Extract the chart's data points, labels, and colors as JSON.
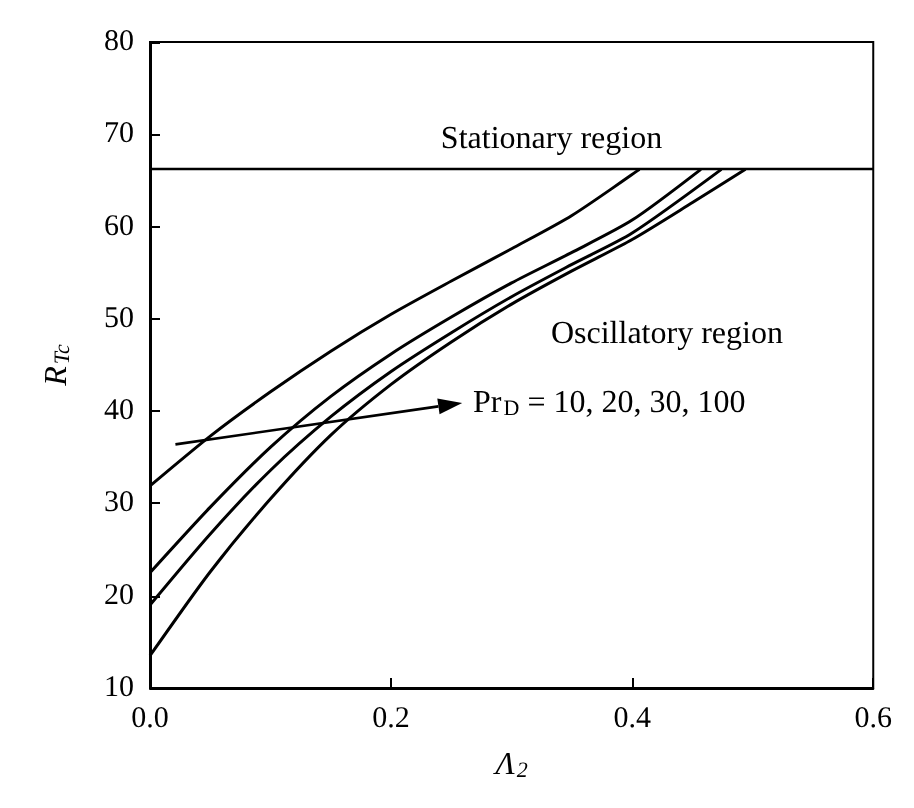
{
  "chart_data": {
    "type": "line",
    "xlabel": "Λ$_{2}$",
    "ylabel": "R$_{Tc}$",
    "xlim": [
      0,
      0.6
    ],
    "xticks": [
      {
        "value": 0,
        "label": "0.0"
      },
      {
        "value": 0.2,
        "label": "0.2"
      },
      {
        "value": 0.4,
        "label": "0.4"
      },
      {
        "value": 0.6,
        "label": "0.6"
      }
    ],
    "ylim": [
      10,
      80
    ],
    "yticks": [
      10,
      20,
      30,
      40,
      50,
      60,
      70,
      80
    ],
    "grid": false,
    "marker": "none",
    "line_style": "solid",
    "series": [
      {
        "color": "#000000",
        "x": [
          0,
          0.05,
          0.1,
          0.15,
          0.2,
          0.25,
          0.3,
          0.35,
          0.406
        ],
        "values": [
          31.9,
          37.3,
          42.1,
          46.5,
          50.5,
          54.1,
          57.6,
          61.2,
          66.2
        ]
      },
      {
        "color": "#000000",
        "x": [
          0,
          0.05,
          0.1,
          0.15,
          0.2,
          0.25,
          0.3,
          0.35,
          0.4,
          0.457
        ],
        "values": [
          22.5,
          29.6,
          36.1,
          41.6,
          46.2,
          50.2,
          53.9,
          57.2,
          60.7,
          66.2
        ]
      },
      {
        "color": "#000000",
        "x": [
          0,
          0.05,
          0.1,
          0.15,
          0.2,
          0.25,
          0.3,
          0.35,
          0.4,
          0.474
        ],
        "values": [
          19,
          26.7,
          33.6,
          39.4,
          44.3,
          48.5,
          52.4,
          55.9,
          59.3,
          66.2
        ]
      },
      {
        "color": "#000000",
        "x": [
          0,
          0.05,
          0.1,
          0.15,
          0.2,
          0.25,
          0.3,
          0.35,
          0.4,
          0.45,
          0.494
        ],
        "values": [
          13.5,
          22.6,
          30.5,
          37.4,
          42.9,
          47.5,
          51.6,
          55.2,
          58.6,
          62.6,
          66.2
        ]
      }
    ],
    "ref_lines": [
      {
        "axis": "y",
        "value": 66.2,
        "color": "#000000",
        "line_style": "solid"
      }
    ],
    "annotations": [
      "Stationary region",
      "Oscillatory region",
      "Pr$_{D}$ = 10, 20, 30, 100"
    ]
  }
}
